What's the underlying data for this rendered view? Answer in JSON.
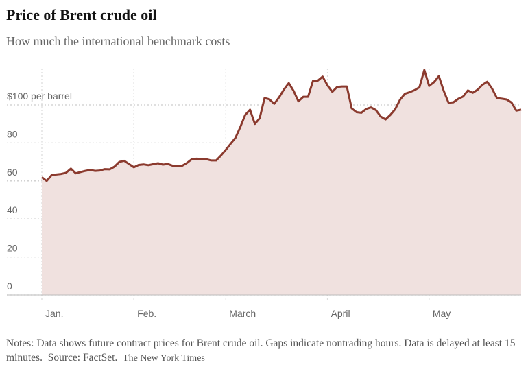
{
  "chart_data": {
    "type": "area",
    "title": "Price of Brent crude oil",
    "subtitle": "How much the international benchmark costs",
    "categories": [
      "Jan.",
      null,
      null,
      null,
      null,
      null,
      null,
      null,
      null,
      null,
      null,
      null,
      null,
      null,
      null,
      null,
      null,
      null,
      null,
      "Feb.",
      null,
      null,
      null,
      null,
      null,
      null,
      null,
      null,
      null,
      null,
      null,
      null,
      null,
      null,
      null,
      null,
      null,
      null,
      "March",
      null,
      null,
      null,
      null,
      null,
      null,
      null,
      null,
      null,
      null,
      null,
      null,
      null,
      null,
      null,
      null,
      null,
      null,
      null,
      null,
      "April",
      null,
      null,
      null,
      null,
      null,
      null,
      null,
      null,
      null,
      null,
      null,
      null,
      null,
      null,
      null,
      null,
      null,
      null,
      null,
      null,
      "May",
      null,
      null,
      null,
      null,
      null,
      null,
      null,
      null,
      null,
      null,
      null,
      null,
      null,
      null,
      null,
      null,
      null,
      null,
      null
    ],
    "series": [
      {
        "name": "Brent crude oil",
        "color": "#8b3a2e",
        "fill": "#f0e1df",
        "values": [
          62,
          60,
          63,
          63.4,
          63.7,
          64.3,
          66.5,
          64,
          64.7,
          65.3,
          65.8,
          65.3,
          65.5,
          66.2,
          66.1,
          67.5,
          70,
          70.6,
          68.9,
          67.2,
          68.4,
          68.7,
          68.3,
          68.8,
          69.3,
          68.6,
          68.9,
          68,
          68,
          68,
          69.5,
          71.5,
          71.7,
          71.6,
          71.4,
          70.8,
          70.8,
          73.4,
          76.4,
          79.6,
          82.7,
          88.4,
          94.7,
          97.5,
          90,
          93,
          103.6,
          103,
          100.6,
          104,
          108.1,
          111.5,
          107.4,
          101.9,
          104.3,
          104.3,
          112.6,
          112.8,
          114.9,
          110.3,
          106.9,
          109.5,
          109.7,
          109.7,
          98.2,
          96.2,
          95.9,
          97.9,
          98.7,
          97.3,
          93.9,
          92.4,
          94.8,
          97.8,
          102.8,
          105.9,
          106.7,
          107.8,
          109.3,
          118.4,
          110,
          112,
          115.2,
          107.5,
          101.2,
          101.4,
          103.2,
          104.4,
          107.6,
          106.4,
          108,
          110.6,
          112.2,
          108.6,
          103.6,
          103.3,
          102.9,
          101.3,
          97,
          97.5
        ]
      }
    ],
    "ylim": [
      0,
      120
    ],
    "yticks": [
      0,
      20,
      40,
      60,
      80,
      {
        "value": 100,
        "label": "$100 per barrel"
      }
    ],
    "grid": true,
    "notes": "Notes: Data shows future contract prices for Brent crude oil. Gaps indicate nontrading hours. Data is delayed at least 15 minutes.",
    "source": "Source: FactSet.",
    "credit": "The New York Times"
  }
}
